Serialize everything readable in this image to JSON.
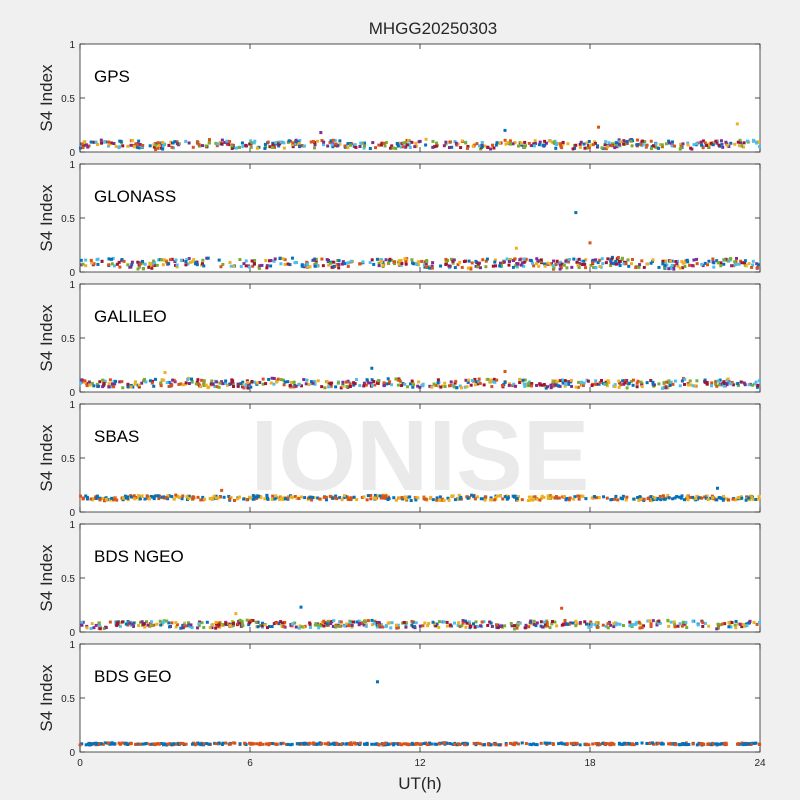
{
  "chart_data": {
    "type": "scatter",
    "title": "MHGG20250303",
    "xlabel": "UT(h)",
    "xlim": [
      0,
      24
    ],
    "xticks": [
      0,
      6,
      12,
      18,
      24
    ],
    "ylabel": "S4 Index",
    "ylim": [
      0,
      1
    ],
    "yticks": [
      "0",
      "0.5",
      "1"
    ],
    "watermark": "IONISE",
    "grid": false,
    "colors": [
      "#0072BD",
      "#D95319",
      "#EDB120",
      "#7E2F8E",
      "#77AC30",
      "#4DBEEE",
      "#A2142F"
    ],
    "panels": [
      {
        "label": "GPS",
        "baseline": 0.07,
        "spread": 0.035,
        "series": 7,
        "outliers": [
          {
            "x": 15.0,
            "y": 0.2
          },
          {
            "x": 18.3,
            "y": 0.23
          },
          {
            "x": 23.2,
            "y": 0.26
          },
          {
            "x": 8.5,
            "y": 0.18
          }
        ]
      },
      {
        "label": "GLONASS",
        "baseline": 0.08,
        "spread": 0.04,
        "series": 7,
        "outliers": [
          {
            "x": 17.5,
            "y": 0.55
          },
          {
            "x": 18.0,
            "y": 0.27
          },
          {
            "x": 15.4,
            "y": 0.22
          }
        ]
      },
      {
        "label": "GALILEO",
        "baseline": 0.08,
        "spread": 0.035,
        "series": 7,
        "outliers": [
          {
            "x": 10.3,
            "y": 0.22
          },
          {
            "x": 15.0,
            "y": 0.19
          },
          {
            "x": 3.0,
            "y": 0.18
          }
        ]
      },
      {
        "label": "SBAS",
        "baseline": 0.13,
        "spread": 0.02,
        "series": 3,
        "outliers": [
          {
            "x": 22.5,
            "y": 0.22
          },
          {
            "x": 5.0,
            "y": 0.2
          }
        ]
      },
      {
        "label": "BDS NGEO",
        "baseline": 0.07,
        "spread": 0.03,
        "series": 7,
        "outliers": [
          {
            "x": 7.8,
            "y": 0.23
          },
          {
            "x": 17.0,
            "y": 0.22
          },
          {
            "x": 5.5,
            "y": 0.17
          }
        ]
      },
      {
        "label": "BDS GEO",
        "baseline": 0.075,
        "spread": 0.008,
        "series": 2,
        "outliers": [
          {
            "x": 10.5,
            "y": 0.65
          }
        ]
      }
    ]
  }
}
